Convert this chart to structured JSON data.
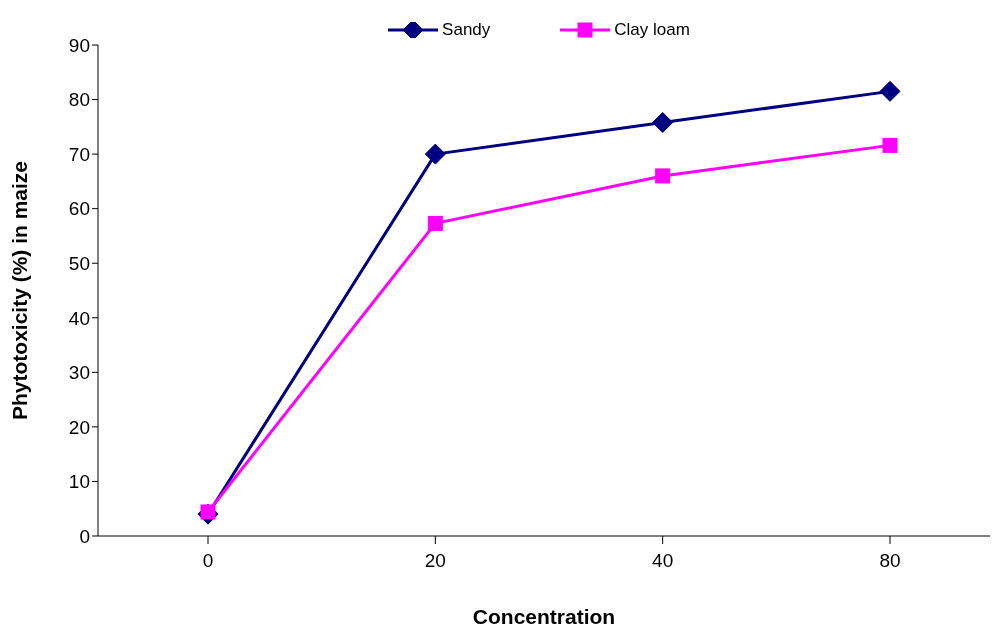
{
  "chart_data": {
    "type": "line",
    "xlabel": "Concentration",
    "ylabel": "Phytotoxicity (%) in maize",
    "categories": [
      "0",
      "20",
      "40",
      "80"
    ],
    "series": [
      {
        "name": "Sandy",
        "color": "#000080",
        "marker": "diamond",
        "values": [
          4,
          70,
          75.8,
          81.5
        ]
      },
      {
        "name": "Clay loam",
        "color": "#ff00ff",
        "marker": "square",
        "values": [
          4.4,
          57.3,
          66,
          71.6
        ]
      }
    ],
    "ylim": [
      0,
      90
    ],
    "yticks": [
      0,
      10,
      20,
      30,
      40,
      50,
      60,
      70,
      80,
      90
    ],
    "grid": false,
    "legend": "top",
    "line_style": "solid"
  }
}
